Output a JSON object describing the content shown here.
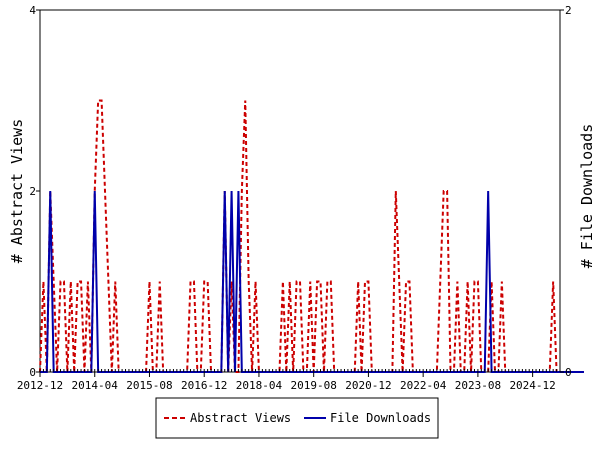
{
  "chart_data": {
    "type": "line",
    "x_ticks": [
      "2012-12",
      "2014-04",
      "2015-08",
      "2016-12",
      "2018-04",
      "2019-08",
      "2020-12",
      "2022-04",
      "2023-08",
      "2024-12"
    ],
    "x_tick_months": [
      0,
      16,
      32,
      48,
      64,
      80,
      96,
      112,
      128,
      144
    ],
    "x_months_total": 152,
    "left_axis": {
      "label": "# Abstract Views",
      "ylim": [
        0,
        4
      ],
      "ticks": [
        "0",
        "2",
        "4"
      ],
      "tick_values": [
        0,
        2,
        4
      ]
    },
    "right_axis": {
      "label": "# File Downloads",
      "ylim": [
        0,
        2
      ],
      "ticks": [
        "0",
        "2"
      ],
      "tick_values": [
        0,
        2
      ]
    },
    "legend": {
      "position": "bottom-center"
    },
    "grid": false,
    "series": [
      {
        "name": "Abstract Views",
        "axis": "left",
        "color": "#cc0000",
        "dash": "dashed",
        "values": [
          0,
          1,
          0,
          2,
          1,
          0,
          1,
          1,
          0,
          1,
          0,
          1,
          1,
          0,
          1,
          0,
          2,
          3,
          3,
          2,
          1,
          0,
          1,
          0,
          0,
          0,
          0,
          0,
          0,
          0,
          0,
          0,
          1,
          0,
          0,
          1,
          0,
          0,
          0,
          0,
          0,
          0,
          0,
          0,
          1,
          1,
          0,
          0,
          1,
          1,
          0,
          0,
          0,
          0,
          2,
          0,
          1,
          0,
          0,
          2,
          3,
          1,
          0,
          1,
          0,
          0,
          0,
          0,
          0,
          0,
          0,
          1,
          0,
          1,
          0,
          1,
          1,
          0,
          0,
          1,
          0,
          1,
          1,
          0,
          1,
          1,
          0,
          0,
          0,
          0,
          0,
          0,
          0,
          1,
          0,
          1,
          1,
          0,
          0,
          0,
          0,
          0,
          0,
          0,
          2,
          1,
          0,
          1,
          1,
          0,
          0,
          0,
          0,
          0,
          0,
          0,
          0,
          1,
          2,
          2,
          0,
          0,
          1,
          0,
          0,
          1,
          0,
          1,
          1,
          0,
          0,
          0,
          1,
          0,
          0,
          1,
          0,
          0,
          0,
          0,
          0,
          0,
          0,
          0,
          0,
          0,
          0,
          0,
          0,
          0,
          1,
          0,
          0,
          0,
          0,
          0,
          0,
          0,
          0,
          0
        ]
      },
      {
        "name": "File Downloads",
        "axis": "right",
        "color": "#0000aa",
        "dash": "solid",
        "values": [
          0,
          0,
          0,
          1,
          0,
          0,
          0,
          0,
          0,
          0,
          0,
          0,
          0,
          0,
          0,
          0,
          1,
          0,
          0,
          0,
          0,
          0,
          0,
          0,
          0,
          0,
          0,
          0,
          0,
          0,
          0,
          0,
          0,
          0,
          0,
          0,
          0,
          0,
          0,
          0,
          0,
          0,
          0,
          0,
          0,
          0,
          0,
          0,
          0,
          0,
          0,
          0,
          0,
          0,
          1,
          0,
          1,
          0,
          1,
          0,
          0,
          0,
          0,
          0,
          0,
          0,
          0,
          0,
          0,
          0,
          0,
          0,
          0,
          0,
          0,
          0,
          0,
          0,
          0,
          0,
          0,
          0,
          0,
          0,
          0,
          0,
          0,
          0,
          0,
          0,
          0,
          0,
          0,
          0,
          0,
          0,
          0,
          0,
          0,
          0,
          0,
          0,
          0,
          0,
          0,
          0,
          0,
          0,
          0,
          0,
          0,
          0,
          0,
          0,
          0,
          0,
          0,
          0,
          0,
          0,
          0,
          0,
          0,
          0,
          0,
          0,
          0,
          0,
          0,
          0,
          0,
          1,
          0,
          0,
          0,
          0,
          0,
          0,
          0,
          0,
          0,
          0,
          0,
          0,
          0,
          0,
          0,
          0,
          0,
          0,
          0,
          0,
          0,
          0,
          0,
          0,
          0,
          0,
          0,
          0
        ]
      }
    ]
  }
}
